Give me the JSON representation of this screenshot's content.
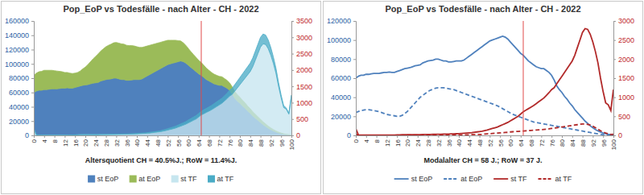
{
  "chart_data": [
    {
      "type": "area",
      "title": "Pop_EoP vs Todesfälle - nach Alter - CH - 2022",
      "annotation": "Altersquotient CH = 40.5%J.; RoW = 11.4%J.",
      "stacked": true,
      "grid": false,
      "legend": "bottom",
      "reference_line": 65,
      "x": [
        0,
        1,
        2,
        3,
        4,
        5,
        6,
        7,
        8,
        9,
        10,
        11,
        12,
        13,
        14,
        15,
        16,
        17,
        18,
        19,
        20,
        21,
        22,
        23,
        24,
        25,
        26,
        27,
        28,
        29,
        30,
        31,
        32,
        33,
        34,
        35,
        36,
        37,
        38,
        39,
        40,
        41,
        42,
        43,
        44,
        45,
        46,
        47,
        48,
        49,
        50,
        51,
        52,
        53,
        54,
        55,
        56,
        57,
        58,
        59,
        60,
        61,
        62,
        63,
        64,
        65,
        66,
        67,
        68,
        69,
        70,
        71,
        72,
        73,
        74,
        75,
        76,
        77,
        78,
        79,
        80,
        81,
        82,
        83,
        84,
        85,
        86,
        87,
        88,
        89,
        90,
        91,
        92,
        93,
        94,
        95,
        96,
        97,
        98,
        99,
        100
      ],
      "xlim": [
        0,
        100
      ],
      "xticks": [
        0,
        4,
        8,
        12,
        16,
        20,
        24,
        28,
        32,
        36,
        40,
        44,
        48,
        52,
        56,
        60,
        64,
        68,
        72,
        76,
        80,
        84,
        88,
        92,
        96,
        100
      ],
      "ylim": [
        0,
        160000
      ],
      "yticks": [
        0,
        20000,
        40000,
        60000,
        80000,
        100000,
        120000,
        140000,
        160000
      ],
      "y2lim": [
        0,
        3500
      ],
      "y2ticks": [
        0,
        500,
        1000,
        1500,
        2000,
        2500,
        3000,
        3500
      ],
      "series": [
        {
          "name": "st EoP",
          "color": "#4f81bd",
          "axis": "y",
          "values": [
            60000,
            62000,
            63000,
            63000,
            64000,
            64000,
            64500,
            65000,
            65000,
            65000,
            65500,
            66000,
            66000,
            66500,
            66000,
            66000,
            67000,
            68000,
            69000,
            70000,
            70500,
            71000,
            72000,
            73000,
            73500,
            74000,
            76000,
            77000,
            78000,
            78500,
            79000,
            80000,
            80000,
            79000,
            78000,
            78000,
            77000,
            77000,
            77500,
            78000,
            78000,
            78000,
            79000,
            81000,
            83000,
            85000,
            87000,
            89000,
            91000,
            93000,
            95000,
            97000,
            99000,
            100000,
            101000,
            102000,
            103000,
            104000,
            103000,
            101000,
            98000,
            95000,
            92000,
            89000,
            86000,
            84000,
            81000,
            78000,
            76000,
            74000,
            72000,
            71000,
            70000,
            70000,
            68000,
            66000,
            63000,
            58000,
            52000,
            48000,
            45000,
            41000,
            38000,
            34000,
            31000,
            27000,
            24000,
            21000,
            18000,
            15000,
            12500,
            10000,
            8000,
            6200,
            4700,
            3500,
            2500,
            1700,
            1100,
            700,
            500
          ]
        },
        {
          "name": "at EoP",
          "color": "#9bbb59",
          "axis": "y",
          "values": [
            24000,
            25000,
            26000,
            26500,
            27000,
            27000,
            26500,
            26000,
            25500,
            25000,
            24000,
            23000,
            22000,
            21500,
            21000,
            20500,
            20000,
            20000,
            21000,
            23000,
            25000,
            28000,
            31000,
            34000,
            37000,
            40000,
            42000,
            44000,
            46000,
            47500,
            48500,
            49500,
            50000,
            50000,
            50000,
            49500,
            49000,
            48500,
            48000,
            47000,
            46000,
            45000,
            44000,
            43000,
            42000,
            41000,
            40000,
            39000,
            38000,
            37000,
            36000,
            35000,
            34000,
            33000,
            32000,
            31000,
            29500,
            28000,
            26500,
            25000,
            23500,
            22000,
            21000,
            20000,
            19000,
            18000,
            17000,
            16000,
            15000,
            14000,
            13500,
            13000,
            12500,
            12000,
            11500,
            11000,
            10500,
            10000,
            9500,
            9000,
            8500,
            8000,
            7500,
            7000,
            6500,
            6000,
            5500,
            5000,
            4500,
            4000,
            3500,
            3000,
            2500,
            2000,
            1500,
            1100,
            800,
            500,
            300,
            200,
            100
          ]
        },
        {
          "name": "st TF",
          "color": "#c6e6ef",
          "axis": "y2",
          "values": [
            180,
            15,
            10,
            8,
            6,
            5,
            5,
            5,
            5,
            5,
            5,
            5,
            6,
            7,
            8,
            10,
            12,
            15,
            18,
            20,
            20,
            20,
            20,
            20,
            20,
            20,
            22,
            22,
            24,
            25,
            26,
            27,
            28,
            30,
            32,
            34,
            36,
            38,
            40,
            42,
            45,
            50,
            55,
            60,
            65,
            70,
            80,
            90,
            100,
            110,
            125,
            140,
            160,
            180,
            200,
            220,
            250,
            280,
            310,
            340,
            380,
            420,
            460,
            500,
            560,
            620,
            660,
            700,
            740,
            780,
            830,
            880,
            930,
            980,
            1050,
            1120,
            1200,
            1250,
            1350,
            1450,
            1550,
            1650,
            1750,
            1850,
            1950,
            2100,
            2300,
            2500,
            2700,
            2800,
            2780,
            2650,
            2450,
            2200,
            1900,
            1500,
            1150,
            850,
            800,
            650,
            1200
          ]
        },
        {
          "name": "at TF",
          "color": "#4bacc6",
          "axis": "y2",
          "values": [
            40,
            2,
            2,
            2,
            2,
            2,
            2,
            2,
            2,
            2,
            2,
            2,
            2,
            2,
            2,
            2,
            2,
            2,
            2,
            2,
            5,
            5,
            5,
            5,
            5,
            5,
            5,
            5,
            5,
            5,
            8,
            8,
            8,
            8,
            8,
            8,
            8,
            8,
            8,
            8,
            15,
            15,
            15,
            15,
            15,
            25,
            25,
            25,
            25,
            25,
            35,
            40,
            45,
            50,
            55,
            60,
            65,
            70,
            75,
            80,
            90,
            95,
            100,
            105,
            110,
            115,
            120,
            125,
            130,
            135,
            140,
            145,
            150,
            155,
            160,
            170,
            180,
            190,
            200,
            210,
            220,
            230,
            240,
            250,
            260,
            270,
            280,
            290,
            300,
            300,
            290,
            270,
            240,
            200,
            160,
            120,
            90,
            60,
            40,
            25,
            30
          ]
        }
      ]
    },
    {
      "type": "line",
      "title": "Pop_EoP vs Todesfälle - nach Alter - CH - 2022",
      "annotation": "Modalalter CH = 58 J.; RoW = 37 J.",
      "grid": false,
      "legend": "bottom",
      "reference_line": 65,
      "x": [
        0,
        1,
        2,
        3,
        4,
        5,
        6,
        7,
        8,
        9,
        10,
        11,
        12,
        13,
        14,
        15,
        16,
        17,
        18,
        19,
        20,
        21,
        22,
        23,
        24,
        25,
        26,
        27,
        28,
        29,
        30,
        31,
        32,
        33,
        34,
        35,
        36,
        37,
        38,
        39,
        40,
        41,
        42,
        43,
        44,
        45,
        46,
        47,
        48,
        49,
        50,
        51,
        52,
        53,
        54,
        55,
        56,
        57,
        58,
        59,
        60,
        61,
        62,
        63,
        64,
        65,
        66,
        67,
        68,
        69,
        70,
        71,
        72,
        73,
        74,
        75,
        76,
        77,
        78,
        79,
        80,
        81,
        82,
        83,
        84,
        85,
        86,
        87,
        88,
        89,
        90,
        91,
        92,
        93,
        94,
        95,
        96,
        97,
        98,
        99,
        100
      ],
      "xlim": [
        0,
        100
      ],
      "xticks": [
        0,
        4,
        8,
        12,
        16,
        20,
        24,
        28,
        32,
        36,
        40,
        44,
        48,
        52,
        56,
        60,
        64,
        68,
        72,
        76,
        80,
        84,
        88,
        92,
        96,
        100
      ],
      "ylim": [
        0,
        120000
      ],
      "yticks": [
        0,
        20000,
        40000,
        60000,
        80000,
        100000,
        120000
      ],
      "y2lim": [
        0,
        3000
      ],
      "y2ticks": [
        0,
        500,
        1000,
        1500,
        2000,
        2500,
        3000
      ],
      "series": [
        {
          "name": "st EoP",
          "color": "#4f81bd",
          "axis": "y",
          "line_style": "solid",
          "values": [
            60000,
            62000,
            63000,
            63000,
            64000,
            64000,
            64500,
            65000,
            65000,
            65000,
            65500,
            66000,
            66000,
            66500,
            66000,
            66000,
            67000,
            68000,
            69000,
            70000,
            70500,
            71000,
            72000,
            73000,
            73500,
            74000,
            76000,
            77000,
            78000,
            78500,
            79000,
            80000,
            80000,
            79000,
            78000,
            78000,
            77000,
            77000,
            77500,
            78000,
            78000,
            78000,
            79000,
            81000,
            83000,
            85000,
            87000,
            89000,
            91000,
            93000,
            95000,
            97000,
            99000,
            100000,
            101000,
            102000,
            103000,
            104000,
            103000,
            101000,
            98000,
            95000,
            92000,
            89000,
            86000,
            84000,
            81000,
            78000,
            76000,
            74000,
            72000,
            71000,
            70000,
            70000,
            68000,
            66000,
            63000,
            58000,
            52000,
            48000,
            45000,
            41000,
            38000,
            34000,
            31000,
            27000,
            24000,
            21000,
            18000,
            15000,
            12500,
            10000,
            8000,
            6200,
            4700,
            3500,
            2500,
            1700,
            1100,
            700,
            500
          ]
        },
        {
          "name": "at EoP",
          "color": "#4f81bd",
          "axis": "y",
          "line_style": "dashed",
          "values": [
            24000,
            25000,
            26000,
            26500,
            27000,
            27000,
            26500,
            26000,
            25500,
            25000,
            24000,
            23000,
            22000,
            21500,
            21000,
            20500,
            20000,
            20000,
            21000,
            23000,
            25000,
            28000,
            31000,
            34000,
            37000,
            40000,
            42000,
            44000,
            46000,
            47500,
            48500,
            49500,
            50000,
            50000,
            50000,
            49500,
            49000,
            48500,
            48000,
            47000,
            46000,
            45000,
            44000,
            43000,
            42000,
            41000,
            40000,
            39000,
            38000,
            37000,
            36000,
            35000,
            34000,
            33000,
            32000,
            31000,
            29500,
            28000,
            26500,
            25000,
            23500,
            22000,
            21000,
            20000,
            19000,
            18000,
            17000,
            16000,
            15000,
            14000,
            13500,
            13000,
            12500,
            12000,
            11500,
            11000,
            10500,
            10000,
            9500,
            9000,
            8500,
            8000,
            7500,
            7000,
            6500,
            6000,
            5500,
            5000,
            4500,
            4000,
            3500,
            3000,
            2500,
            2000,
            1500,
            1100,
            800,
            500,
            300,
            200,
            100
          ]
        },
        {
          "name": "st TF",
          "color": "#b22a2a",
          "axis": "y2",
          "line_style": "solid",
          "values": [
            180,
            15,
            10,
            8,
            6,
            5,
            5,
            5,
            5,
            5,
            5,
            5,
            6,
            7,
            8,
            10,
            12,
            15,
            18,
            20,
            20,
            20,
            20,
            20,
            20,
            20,
            22,
            22,
            24,
            25,
            26,
            27,
            28,
            30,
            32,
            34,
            36,
            38,
            40,
            42,
            45,
            50,
            55,
            60,
            65,
            70,
            80,
            90,
            100,
            110,
            125,
            140,
            160,
            180,
            200,
            220,
            250,
            280,
            310,
            340,
            380,
            420,
            460,
            500,
            560,
            620,
            660,
            700,
            740,
            780,
            830,
            880,
            930,
            980,
            1050,
            1120,
            1200,
            1250,
            1350,
            1450,
            1550,
            1650,
            1750,
            1850,
            1950,
            2100,
            2300,
            2500,
            2700,
            2800,
            2780,
            2650,
            2450,
            2200,
            1900,
            1500,
            1150,
            850,
            800,
            650,
            1200
          ]
        },
        {
          "name": "at TF",
          "color": "#b22a2a",
          "axis": "y2",
          "line_style": "dashed",
          "values": [
            40,
            2,
            2,
            2,
            2,
            2,
            2,
            2,
            2,
            2,
            2,
            2,
            2,
            2,
            2,
            2,
            2,
            2,
            2,
            2,
            5,
            5,
            5,
            5,
            5,
            5,
            5,
            5,
            5,
            5,
            8,
            8,
            8,
            8,
            8,
            8,
            8,
            8,
            8,
            8,
            15,
            15,
            15,
            15,
            15,
            25,
            25,
            25,
            25,
            25,
            35,
            40,
            45,
            50,
            55,
            60,
            65,
            70,
            75,
            80,
            90,
            95,
            100,
            105,
            110,
            115,
            120,
            125,
            130,
            135,
            140,
            145,
            150,
            155,
            160,
            170,
            180,
            190,
            200,
            210,
            220,
            230,
            240,
            250,
            260,
            270,
            280,
            290,
            300,
            300,
            290,
            270,
            240,
            200,
            160,
            120,
            90,
            60,
            40,
            25,
            30
          ]
        }
      ]
    }
  ]
}
